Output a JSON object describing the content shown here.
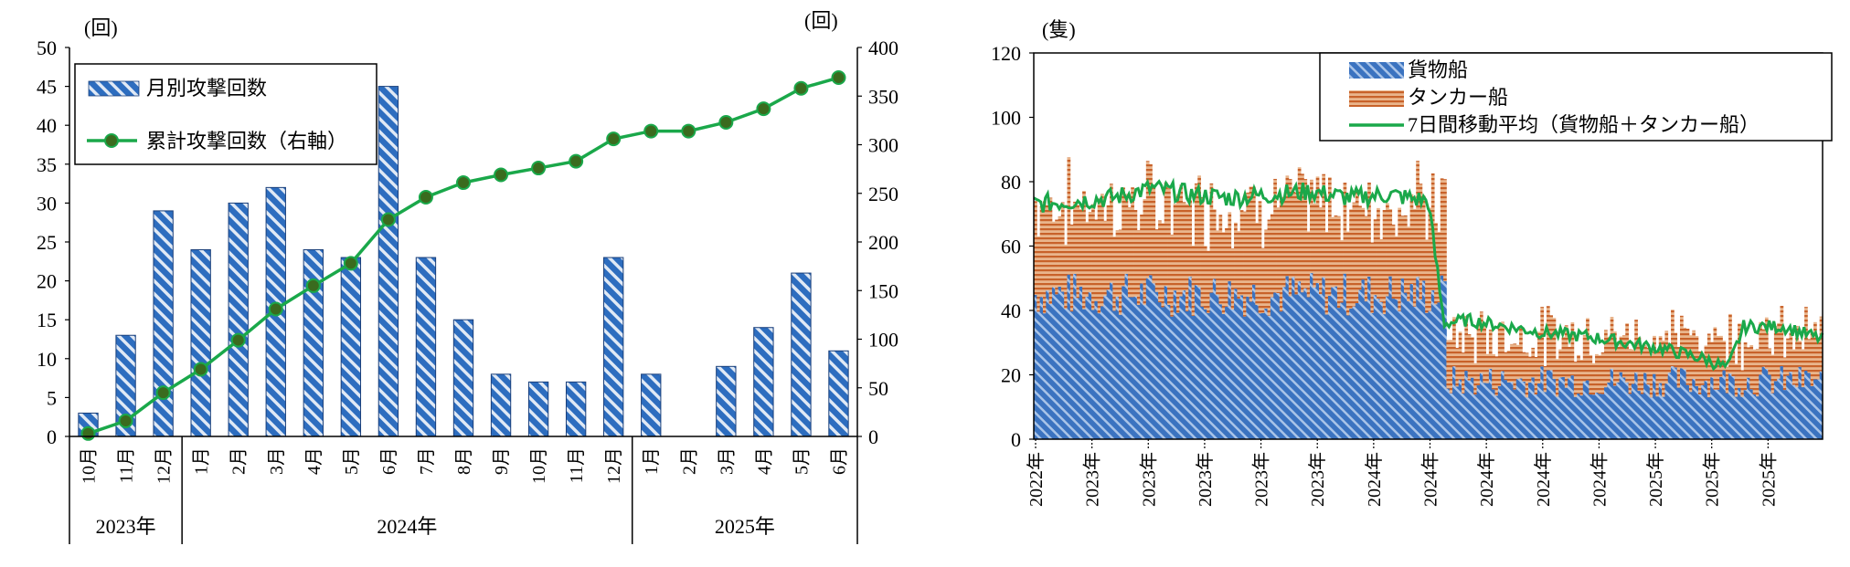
{
  "chart_data": [
    {
      "type": "bar",
      "title": "",
      "y_unit_left": "(回)",
      "y_unit_right": "(回)",
      "ylim": [
        0,
        50
      ],
      "ylim_right": [
        0,
        400
      ],
      "yticks": [
        "0",
        "5",
        "10",
        "15",
        "20",
        "25",
        "30",
        "35",
        "40",
        "45",
        "50"
      ],
      "yticks_right": [
        "0",
        "50",
        "100",
        "150",
        "200",
        "250",
        "300",
        "350",
        "400"
      ],
      "categories": [
        "10月",
        "11月",
        "12月",
        "1月",
        "2月",
        "3月",
        "4月",
        "5月",
        "6月",
        "7月",
        "8月",
        "9月",
        "10月",
        "11月",
        "12月",
        "1月",
        "2月",
        "3月",
        "4月",
        "5月",
        "6月"
      ],
      "year_groups": [
        {
          "label": "2023年",
          "count": 3
        },
        {
          "label": "2024年",
          "count": 12
        },
        {
          "label": "2025年",
          "count": 6
        }
      ],
      "series": [
        {
          "name": "月別攻撃回数",
          "type": "bar",
          "axis": "left",
          "values": [
            3,
            13,
            29,
            24,
            30,
            32,
            24,
            23,
            45,
            23,
            15,
            8,
            7,
            7,
            23,
            8,
            0,
            9,
            14,
            21,
            11
          ]
        },
        {
          "name": "累計攻撃回数（右軸）",
          "type": "line",
          "axis": "right",
          "values": [
            3,
            16,
            45,
            69,
            99,
            131,
            155,
            178,
            223,
            246,
            261,
            269,
            276,
            283,
            306,
            314,
            314,
            323,
            337,
            358,
            369
          ]
        }
      ],
      "colors": {
        "bar": "#2d6dbf",
        "line": "#1aa84a",
        "marker": "#3a6b1e"
      }
    },
    {
      "type": "area",
      "title": "",
      "y_unit": "(隻)",
      "ylim": [
        0,
        120
      ],
      "yticks": [
        "0",
        "20",
        "40",
        "60",
        "80",
        "100",
        "120"
      ],
      "xticks": [
        "2022年",
        "2023年",
        "2023年",
        "2023年",
        "2023年",
        "2023年",
        "2024年",
        "2024年",
        "2024年",
        "2024年",
        "2024年",
        "2025年",
        "2025年",
        "2025年"
      ],
      "series": [
        {
          "name": "貨物船",
          "type": "stacked-bar",
          "period_levels": {
            "2022年-2023年": 45,
            "2024年-2025年": 18
          }
        },
        {
          "name": "タンカー船",
          "type": "stacked-bar",
          "period_levels": {
            "2022年-2023年": 28,
            "2024年-2025年": 14
          }
        },
        {
          "name": "7日間移動平均（貨物船＋タンカー船）",
          "type": "line",
          "x": [
            0,
            0.05,
            0.1,
            0.15,
            0.2,
            0.25,
            0.3,
            0.35,
            0.4,
            0.45,
            0.5,
            0.52,
            0.55,
            0.6,
            0.65,
            0.7,
            0.75,
            0.8,
            0.85,
            0.88,
            0.9,
            0.95,
            1.0
          ],
          "values": [
            73,
            74,
            75,
            78,
            76,
            75,
            76,
            77,
            75,
            76,
            74,
            36,
            37,
            35,
            33,
            32,
            30,
            28,
            25,
            22,
            35,
            35,
            31
          ]
        }
      ],
      "colors": {
        "cargo": "#3b73c0",
        "tanker": "#c8622a",
        "avg": "#1aa84a"
      }
    }
  ]
}
